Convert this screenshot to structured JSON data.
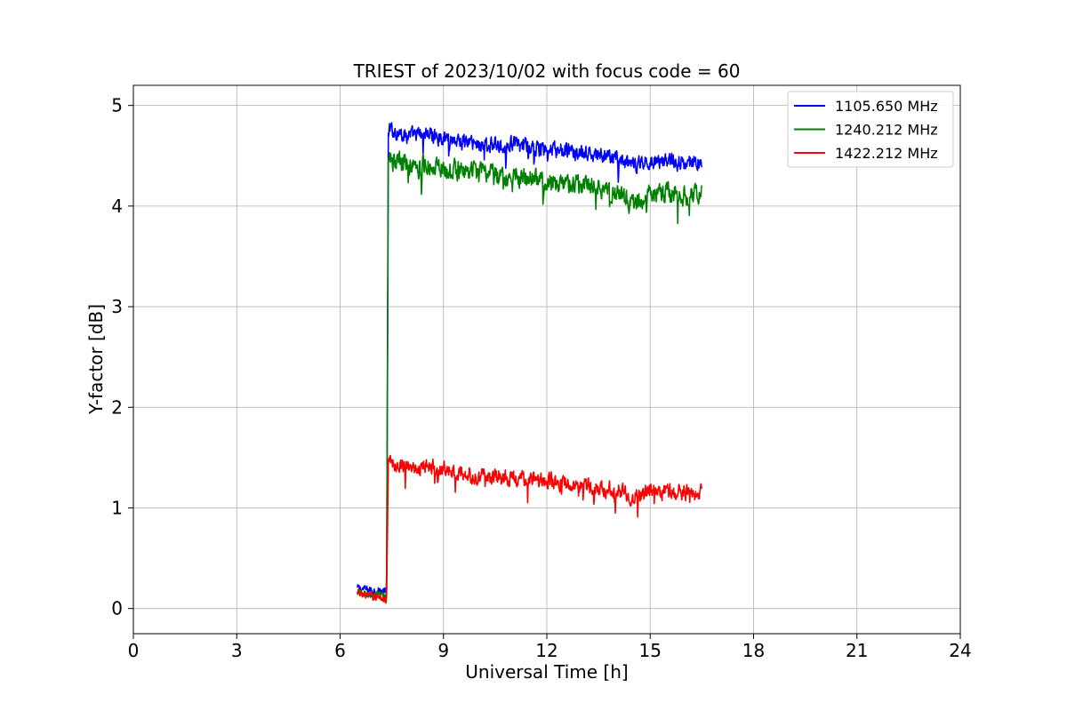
{
  "chart_data": {
    "type": "line",
    "title": "TRIEST of 2023/10/02 with focus code = 60",
    "xlabel": "Universal Time [h]",
    "ylabel": "Y-factor [dB]",
    "xlim": [
      0,
      24
    ],
    "ylim": [
      -0.25,
      5.2
    ],
    "xticks": [
      0,
      3,
      6,
      9,
      12,
      15,
      18,
      21,
      24
    ],
    "yticks": [
      0,
      1,
      2,
      3,
      4,
      5
    ],
    "grid": true,
    "legend_position": "top-right",
    "series": [
      {
        "name": "1105.650 MHz",
        "color": "#0000ff",
        "x": [
          6.5,
          7.0,
          7.35,
          7.4,
          7.5,
          8.0,
          8.5,
          9.0,
          9.5,
          10.0,
          10.5,
          11.0,
          11.5,
          12.0,
          12.5,
          13.0,
          13.5,
          14.0,
          14.5,
          15.0,
          15.5,
          16.0,
          16.5
        ],
        "y": [
          0.2,
          0.18,
          0.17,
          4.75,
          4.75,
          4.7,
          4.72,
          4.68,
          4.65,
          4.62,
          4.6,
          4.62,
          4.58,
          4.55,
          4.55,
          4.52,
          4.5,
          4.48,
          4.4,
          4.45,
          4.45,
          4.43,
          4.45
        ],
        "noise": 0.12
      },
      {
        "name": "1240.212 MHz",
        "color": "#008000",
        "x": [
          6.5,
          7.0,
          7.35,
          7.4,
          7.5,
          8.0,
          8.5,
          9.0,
          9.5,
          10.0,
          10.5,
          11.0,
          11.5,
          12.0,
          12.5,
          13.0,
          13.5,
          14.0,
          14.5,
          15.0,
          15.5,
          16.0,
          16.5
        ],
        "y": [
          0.15,
          0.13,
          0.12,
          4.45,
          4.45,
          4.42,
          4.42,
          4.38,
          4.35,
          4.33,
          4.32,
          4.3,
          4.28,
          4.25,
          4.22,
          4.2,
          4.18,
          4.15,
          4.0,
          4.12,
          4.12,
          4.1,
          4.12
        ],
        "noise": 0.15
      },
      {
        "name": "1422.212 MHz",
        "color": "#ff0000",
        "x": [
          6.5,
          7.0,
          7.35,
          7.4,
          7.5,
          8.0,
          8.5,
          9.0,
          9.5,
          10.0,
          10.5,
          11.0,
          11.5,
          12.0,
          12.5,
          13.0,
          13.5,
          14.0,
          14.5,
          15.0,
          15.5,
          16.0,
          16.5
        ],
        "y": [
          0.15,
          0.12,
          0.1,
          1.45,
          1.45,
          1.42,
          1.4,
          1.38,
          1.35,
          1.32,
          1.3,
          1.28,
          1.28,
          1.27,
          1.25,
          1.22,
          1.2,
          1.18,
          1.1,
          1.16,
          1.16,
          1.15,
          1.15
        ],
        "noise": 0.12
      }
    ]
  }
}
